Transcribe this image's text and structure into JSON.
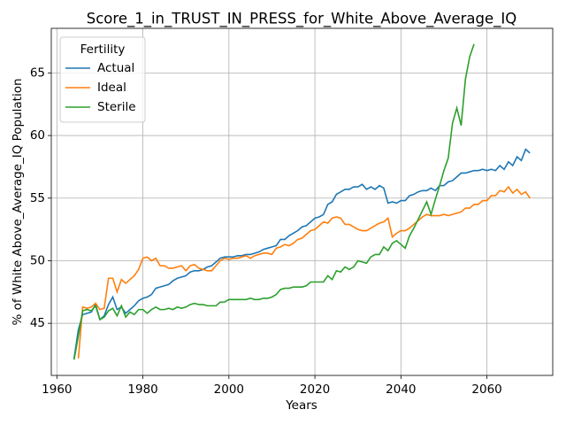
{
  "chart_data": {
    "type": "line",
    "title": "Score_1_in_TRUST_IN_PRESS_for_White_Above_Average_IQ",
    "x_label": "Years",
    "y_label": "% of White Above_Average_IQ Population",
    "legend_title": "Fertility",
    "legend_position": "upper left",
    "grid": true,
    "xlim": [
      1958.7,
      2075.3
    ],
    "ylim": [
      40.84,
      68.56
    ],
    "xticks": [
      1960,
      1980,
      2000,
      2020,
      2040,
      2060
    ],
    "yticks": [
      45,
      50,
      55,
      60,
      65
    ],
    "x": [
      1964,
      1965,
      1966,
      1967,
      1968,
      1969,
      1970,
      1971,
      1972,
      1973,
      1974,
      1975,
      1976,
      1977,
      1978,
      1979,
      1980,
      1981,
      1982,
      1983,
      1984,
      1985,
      1986,
      1987,
      1988,
      1989,
      1990,
      1991,
      1992,
      1993,
      1994,
      1995,
      1996,
      1997,
      1998,
      1999,
      2000,
      2001,
      2002,
      2003,
      2004,
      2005,
      2006,
      2007,
      2008,
      2009,
      2010,
      2011,
      2012,
      2013,
      2014,
      2015,
      2016,
      2017,
      2018,
      2019,
      2020,
      2021,
      2022,
      2023,
      2024,
      2025,
      2026,
      2027,
      2028,
      2029,
      2030,
      2031,
      2032,
      2033,
      2034,
      2035,
      2036,
      2037,
      2038,
      2039,
      2040,
      2041,
      2042,
      2043,
      2044,
      2045,
      2046,
      2047,
      2048,
      2049,
      2050,
      2051,
      2052,
      2053,
      2054,
      2055,
      2056,
      2057,
      2058,
      2059,
      2060,
      2061,
      2062,
      2063,
      2064,
      2065,
      2066,
      2067,
      2068,
      2069,
      2070
    ],
    "series": [
      {
        "name": "Actual",
        "color": "#1f77b4",
        "values": [
          42.2,
          44.5,
          45.7,
          45.8,
          45.9,
          46.5,
          45.3,
          45.6,
          46.5,
          47.1,
          46.1,
          46.3,
          45.8,
          46.1,
          46.4,
          46.8,
          47.0,
          47.1,
          47.3,
          47.8,
          47.9,
          48.0,
          48.1,
          48.4,
          48.6,
          48.7,
          48.8,
          49.1,
          49.2,
          49.2,
          49.3,
          49.5,
          49.6,
          49.9,
          50.2,
          50.3,
          50.3,
          50.3,
          50.4,
          50.4,
          50.5,
          50.5,
          50.6,
          50.7,
          50.9,
          51.0,
          51.1,
          51.2,
          51.7,
          51.7,
          52.0,
          52.2,
          52.4,
          52.7,
          52.8,
          53.1,
          53.4,
          53.5,
          53.7,
          54.5,
          54.7,
          55.3,
          55.5,
          55.7,
          55.7,
          55.9,
          55.9,
          56.1,
          55.7,
          55.9,
          55.7,
          56.0,
          55.8,
          54.6,
          54.7,
          54.6,
          54.8,
          54.8,
          55.2,
          55.3,
          55.5,
          55.6,
          55.6,
          55.8,
          55.6,
          56.0,
          56.0,
          56.3,
          56.4,
          56.7,
          57.0,
          57.0,
          57.1,
          57.2,
          57.2,
          57.3,
          57.2,
          57.3,
          57.2,
          57.6,
          57.3,
          57.9,
          57.6,
          58.3,
          58.0,
          58.9,
          58.6
        ]
      },
      {
        "name": "Ideal",
        "color": "#ff7f0e",
        "values": [
          null,
          42.2,
          46.3,
          46.2,
          46.3,
          46.6,
          46.1,
          46.2,
          48.6,
          48.6,
          47.5,
          48.5,
          48.2,
          48.5,
          48.8,
          49.3,
          50.2,
          50.3,
          50.0,
          50.2,
          49.6,
          49.6,
          49.4,
          49.4,
          49.5,
          49.6,
          49.2,
          49.6,
          49.7,
          49.4,
          49.3,
          49.2,
          49.2,
          49.6,
          50.0,
          50.2,
          50.1,
          50.2,
          50.2,
          50.3,
          50.4,
          50.2,
          50.4,
          50.5,
          50.6,
          50.6,
          50.5,
          51.0,
          51.1,
          51.3,
          51.2,
          51.4,
          51.7,
          51.8,
          52.1,
          52.4,
          52.5,
          52.8,
          53.1,
          53.0,
          53.4,
          53.5,
          53.4,
          52.9,
          52.9,
          52.7,
          52.5,
          52.4,
          52.4,
          52.6,
          52.8,
          53.0,
          53.1,
          53.4,
          51.9,
          52.2,
          52.4,
          52.4,
          52.6,
          52.9,
          53.2,
          53.5,
          53.7,
          53.6,
          53.6,
          53.6,
          53.7,
          53.6,
          53.7,
          53.8,
          53.9,
          54.2,
          54.2,
          54.5,
          54.5,
          54.8,
          54.8,
          55.2,
          55.2,
          55.6,
          55.5,
          55.9,
          55.4,
          55.7,
          55.3,
          55.5,
          55.0
        ]
      },
      {
        "name": "Sterile",
        "color": "#2ca02c",
        "values": [
          42.1,
          44.0,
          46.0,
          46.1,
          46.0,
          46.4,
          45.3,
          45.5,
          46.0,
          46.2,
          45.6,
          46.4,
          45.5,
          45.9,
          45.7,
          46.1,
          46.1,
          45.8,
          46.1,
          46.3,
          46.1,
          46.1,
          46.2,
          46.1,
          46.3,
          46.2,
          46.3,
          46.5,
          46.6,
          46.5,
          46.5,
          46.4,
          46.4,
          46.4,
          46.7,
          46.7,
          46.9,
          46.9,
          46.9,
          46.9,
          46.9,
          47.0,
          46.9,
          46.9,
          47.0,
          47.0,
          47.1,
          47.3,
          47.7,
          47.8,
          47.8,
          47.9,
          47.9,
          47.9,
          48.0,
          48.3,
          48.3,
          48.3,
          48.3,
          48.8,
          48.5,
          49.2,
          49.1,
          49.5,
          49.3,
          49.5,
          50.0,
          49.9,
          49.8,
          50.3,
          50.5,
          50.5,
          51.1,
          50.8,
          51.4,
          51.6,
          51.3,
          51.0,
          52.0,
          52.6,
          53.3,
          54.0,
          54.7,
          53.7,
          54.9,
          56.0,
          57.2,
          58.2,
          61.0,
          62.2,
          60.8,
          64.5,
          66.3,
          67.3,
          null,
          null,
          null,
          null,
          null,
          null,
          null,
          null,
          null,
          null,
          null,
          null,
          null
        ]
      }
    ]
  }
}
